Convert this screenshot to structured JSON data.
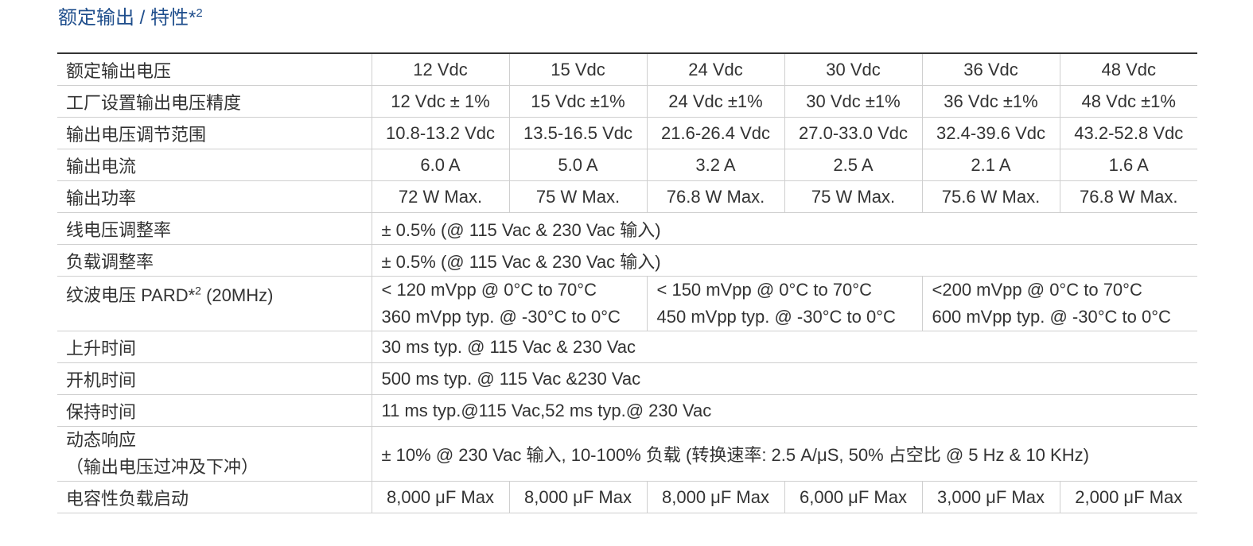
{
  "header": {
    "title": "额定输出 / 特性*",
    "title_sup": "2"
  },
  "table": {
    "rows": [
      {
        "label": "额定输出电压",
        "cells": [
          "12 Vdc",
          "15 Vdc",
          "24 Vdc",
          "30 Vdc",
          "36 Vdc",
          "48 Vdc"
        ]
      },
      {
        "label": "工厂设置输出电压精度",
        "cells": [
          "12 Vdc ± 1%",
          "15 Vdc ±1%",
          "24 Vdc ±1%",
          "30 Vdc ±1%",
          "36 Vdc ±1%",
          "48 Vdc ±1%"
        ]
      },
      {
        "label": "输出电压调节范围",
        "cells": [
          "10.8-13.2 Vdc",
          "13.5-16.5 Vdc",
          "21.6-26.4 Vdc",
          "27.0-33.0 Vdc",
          "32.4-39.6 Vdc",
          "43.2-52.8 Vdc"
        ]
      },
      {
        "label": "输出电流",
        "cells": [
          "6.0 A",
          "5.0 A",
          "3.2 A",
          "2.5 A",
          "2.1 A",
          "1.6 A"
        ]
      },
      {
        "label": "输出功率",
        "cells": [
          "72 W Max.",
          "75 W Max.",
          "76.8 W Max.",
          "75 W Max.",
          "75.6 W Max.",
          "76.8 W Max."
        ]
      },
      {
        "label": "线电压调整率",
        "cells": [
          "± 0.5% (@ 115 Vac & 230 Vac 输入)"
        ]
      },
      {
        "label": "负载调整率",
        "cells": [
          "± 0.5% (@ 115 Vac & 230 Vac 输入)"
        ]
      },
      {
        "label": "纹波电压 PARD*",
        "label_sup": "2",
        "label_after": " (20MHz)",
        "cells": [
          [
            "< 120 mVpp @ 0°C to 70°C",
            "360 mVpp typ. @ -30°C to 0°C"
          ],
          [
            "< 150 mVpp @ 0°C to 70°C",
            "450 mVpp typ. @ -30°C to 0°C"
          ],
          [
            "<200 mVpp @ 0°C to 70°C",
            "600 mVpp typ. @ -30°C to 0°C"
          ]
        ]
      },
      {
        "label": "上升时间",
        "cells": [
          "30 ms typ. @ 115 Vac & 230 Vac"
        ]
      },
      {
        "label": "开机时间",
        "cells": [
          "500 ms typ. @ 115 Vac &230 Vac"
        ]
      },
      {
        "label": "保持时间",
        "cells": [
          "11 ms typ.@115 Vac,52 ms typ.@ 230 Vac"
        ]
      },
      {
        "label": [
          "动态响应",
          "（输出电压过冲及下冲）"
        ],
        "cells": [
          "± 10% @ 230 Vac 输入, 10-100% 负载 (转换速率: 2.5 A/μS, 50% 占空比 @ 5 Hz & 10 KHz)"
        ]
      },
      {
        "label": "电容性负载启动",
        "cells": [
          "8,000 μF Max",
          "8,000 μF Max",
          "8,000 μF Max",
          "6,000 μF Max",
          "3,000 μF Max",
          "2,000 μF Max"
        ]
      }
    ]
  }
}
